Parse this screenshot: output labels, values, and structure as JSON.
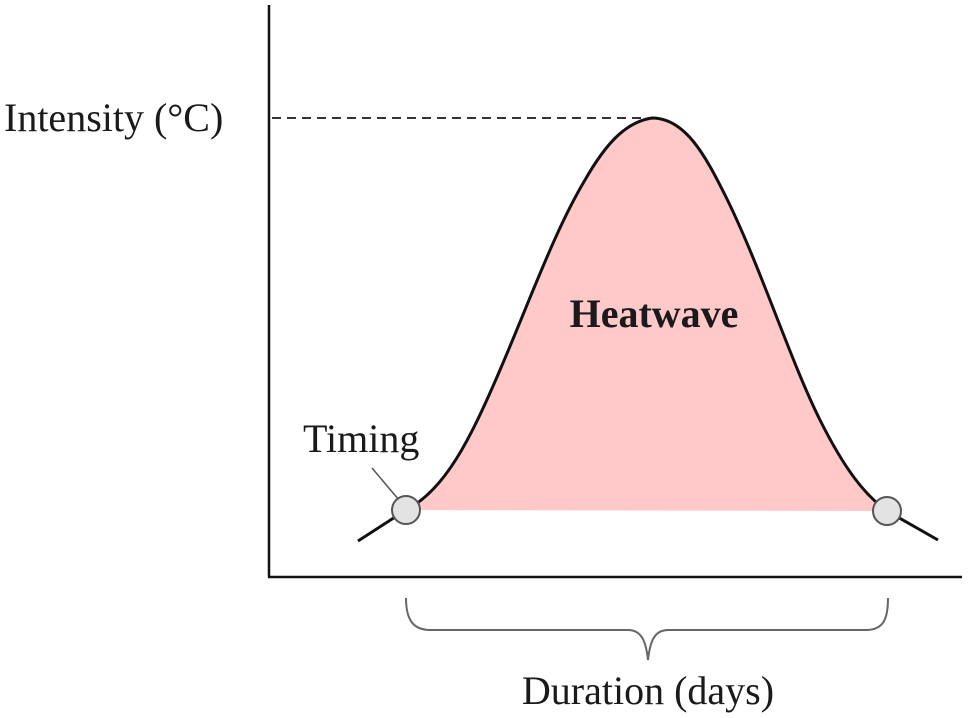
{
  "diagram": {
    "labels": {
      "intensity": "Intensity (°C)",
      "event": "Heatwave",
      "timing": "Timing",
      "duration": "Duration (days)"
    },
    "colors": {
      "event_fill": "#ffc9c9",
      "curve": "#111111",
      "axis": "#111111",
      "marker_fill": "#e3e3e3",
      "marker_stroke": "#555555",
      "brace": "#666666",
      "dashed_line": "#333333"
    }
  }
}
